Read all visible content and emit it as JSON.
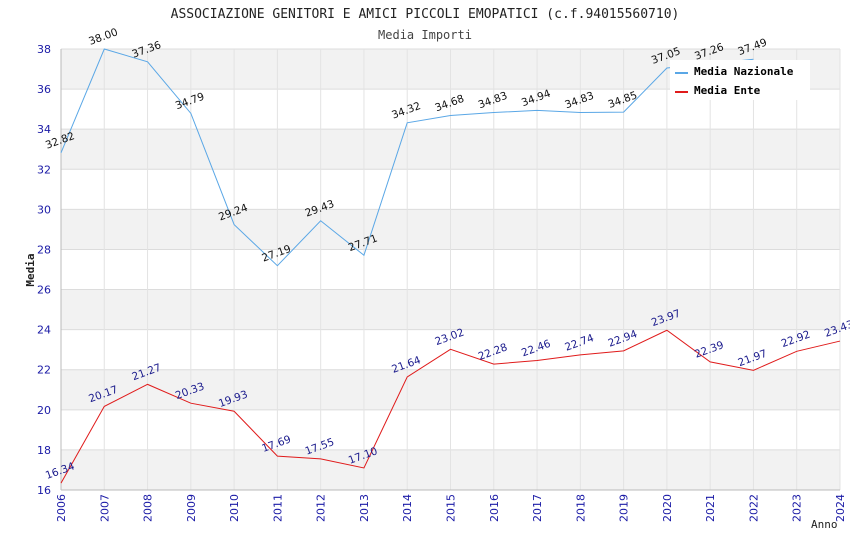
{
  "chart_data": {
    "type": "line",
    "title": "ASSOCIAZIONE GENITORI E AMICI PICCOLI EMOPATICI (c.f.94015560710)",
    "subtitle": "Media Importi",
    "xlabel": "Anno",
    "ylabel": "Media",
    "ylim": [
      16,
      38
    ],
    "yticks": [
      16,
      18,
      20,
      22,
      24,
      26,
      28,
      30,
      32,
      34,
      36,
      38
    ],
    "grid": true,
    "legend_position": "top-right",
    "categories": [
      "2006",
      "2007",
      "2008",
      "2009",
      "2010",
      "2011",
      "2012",
      "2013",
      "2014",
      "2015",
      "2016",
      "2017",
      "2018",
      "2019",
      "2020",
      "2021",
      "2022",
      "2023",
      "2024"
    ],
    "series": [
      {
        "name": "Media Nazionale",
        "color": "#5aa7e6",
        "values": [
          32.82,
          38.0,
          37.36,
          34.79,
          29.24,
          27.19,
          29.43,
          27.71,
          34.32,
          34.68,
          34.83,
          34.94,
          34.83,
          34.85,
          37.05,
          37.26,
          37.49,
          null,
          null
        ],
        "labels": [
          "32.82",
          "38.00",
          "37.36",
          "34.79",
          "29.24",
          "27.19",
          "29.43",
          "27.71",
          "34.32",
          "34.68",
          "34.83",
          "34.94",
          "34.83",
          "34.85",
          "37.05",
          "37.26",
          "37.49",
          "",
          ""
        ]
      },
      {
        "name": "Media Ente",
        "color": "#e01b1b",
        "values": [
          16.34,
          20.17,
          21.27,
          20.33,
          19.93,
          17.69,
          17.55,
          17.1,
          21.64,
          23.02,
          22.28,
          22.46,
          22.74,
          22.94,
          23.97,
          22.39,
          21.97,
          22.92,
          23.43
        ],
        "labels": [
          "16.34",
          "20.17",
          "21.27",
          "20.33",
          "19.93",
          "17.69",
          "17.55",
          "17.10",
          "21.64",
          "23.02",
          "22.28",
          "22.46",
          "22.74",
          "22.94",
          "23.97",
          "22.39",
          "21.97",
          "22.92",
          "23.43"
        ]
      }
    ]
  }
}
